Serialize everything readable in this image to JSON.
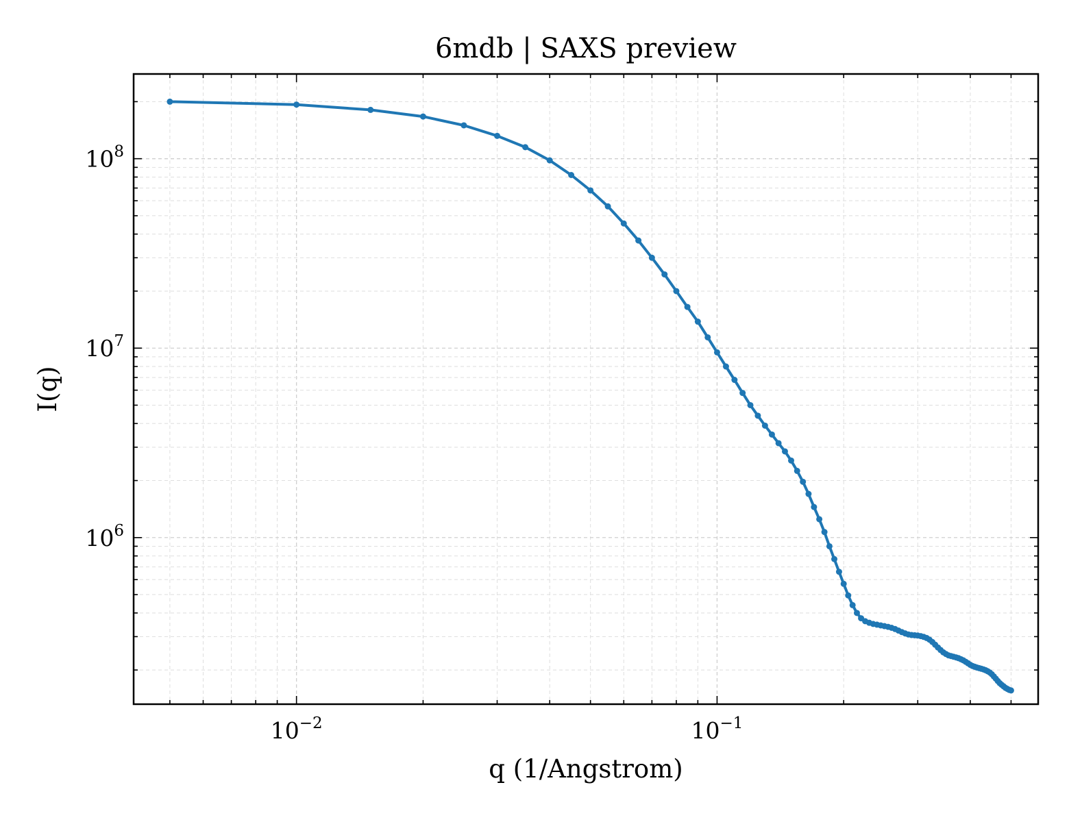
{
  "chart_data": {
    "type": "line",
    "title": "6mdb | SAXS preview",
    "xlabel": "q (1/Angstrom)",
    "ylabel": "I(q)",
    "xscale": "log",
    "yscale": "log",
    "xlim": [
      0.0041,
      0.58
    ],
    "ylim": [
      132000,
      280000000
    ],
    "x_ticks": [
      {
        "value": 0.01,
        "base": "10",
        "exp": "−2"
      },
      {
        "value": 0.1,
        "base": "10",
        "exp": "−1"
      }
    ],
    "y_ticks": [
      {
        "value": 1000000,
        "base": "10",
        "exp": "6"
      },
      {
        "value": 10000000,
        "base": "10",
        "exp": "7"
      },
      {
        "value": 100000000,
        "base": "10",
        "exp": "8"
      }
    ],
    "grid": true,
    "legend": "none",
    "line_color": "#1f77b4",
    "series": [
      {
        "points": [
          [
            0.005,
            200000000
          ],
          [
            0.01,
            193000000
          ],
          [
            0.015,
            181000000
          ],
          [
            0.02,
            167000000
          ],
          [
            0.025,
            150000000
          ],
          [
            0.03,
            132000000
          ],
          [
            0.035,
            115000000
          ],
          [
            0.04,
            98000000
          ],
          [
            0.045,
            82000000
          ],
          [
            0.05,
            68000000
          ],
          [
            0.055,
            56000000
          ],
          [
            0.06,
            45500000
          ],
          [
            0.065,
            37000000
          ],
          [
            0.07,
            30000000
          ],
          [
            0.075,
            24500000
          ],
          [
            0.08,
            20000000
          ],
          [
            0.085,
            16500000
          ],
          [
            0.09,
            13800000
          ],
          [
            0.095,
            11400000
          ],
          [
            0.1,
            9500000
          ],
          [
            0.105,
            8000000
          ],
          [
            0.11,
            6800000
          ],
          [
            0.115,
            5800000
          ],
          [
            0.12,
            5000000
          ],
          [
            0.125,
            4400000
          ],
          [
            0.13,
            3900000
          ],
          [
            0.135,
            3500000
          ],
          [
            0.14,
            3150000
          ],
          [
            0.145,
            2850000
          ],
          [
            0.15,
            2550000
          ],
          [
            0.155,
            2250000
          ],
          [
            0.16,
            1970000
          ],
          [
            0.165,
            1700000
          ],
          [
            0.17,
            1450000
          ],
          [
            0.175,
            1250000
          ],
          [
            0.18,
            1070000
          ],
          [
            0.185,
            900000
          ],
          [
            0.19,
            770000
          ],
          [
            0.195,
            660000
          ],
          [
            0.2,
            570000
          ],
          [
            0.205,
            495000
          ],
          [
            0.21,
            440000
          ],
          [
            0.215,
            400000
          ],
          [
            0.22,
            375000
          ],
          [
            0.225,
            362000
          ],
          [
            0.23,
            355000
          ],
          [
            0.235,
            350000
          ],
          [
            0.24,
            347000
          ],
          [
            0.245,
            344000
          ],
          [
            0.25,
            341000
          ],
          [
            0.255,
            338000
          ],
          [
            0.26,
            334000
          ],
          [
            0.265,
            329000
          ],
          [
            0.27,
            323000
          ],
          [
            0.275,
            317000
          ],
          [
            0.28,
            312000
          ],
          [
            0.285,
            308000
          ],
          [
            0.29,
            306000
          ],
          [
            0.295,
            305000
          ],
          [
            0.3,
            304000
          ],
          [
            0.305,
            302000
          ],
          [
            0.31,
            299000
          ],
          [
            0.315,
            295000
          ],
          [
            0.32,
            289000
          ],
          [
            0.325,
            281000
          ],
          [
            0.33,
            272000
          ],
          [
            0.335,
            263000
          ],
          [
            0.34,
            255000
          ],
          [
            0.345,
            248000
          ],
          [
            0.35,
            243000
          ],
          [
            0.355,
            239000
          ],
          [
            0.36,
            237000
          ],
          [
            0.365,
            235000
          ],
          [
            0.37,
            233000
          ],
          [
            0.375,
            231000
          ],
          [
            0.38,
            228000
          ],
          [
            0.385,
            225000
          ],
          [
            0.39,
            221000
          ],
          [
            0.395,
            217000
          ],
          [
            0.4,
            213000
          ],
          [
            0.405,
            210000
          ],
          [
            0.41,
            208000
          ],
          [
            0.415,
            206000
          ],
          [
            0.42,
            204500
          ],
          [
            0.425,
            203000
          ],
          [
            0.43,
            201500
          ],
          [
            0.435,
            199500
          ],
          [
            0.44,
            197000
          ],
          [
            0.445,
            194000
          ],
          [
            0.45,
            190000
          ],
          [
            0.455,
            185000
          ],
          [
            0.46,
            180000
          ],
          [
            0.465,
            175000
          ],
          [
            0.47,
            170500
          ],
          [
            0.475,
            167000
          ],
          [
            0.48,
            164000
          ],
          [
            0.485,
            161000
          ],
          [
            0.49,
            159000
          ],
          [
            0.495,
            157000
          ],
          [
            0.5,
            156000
          ]
        ]
      }
    ]
  }
}
